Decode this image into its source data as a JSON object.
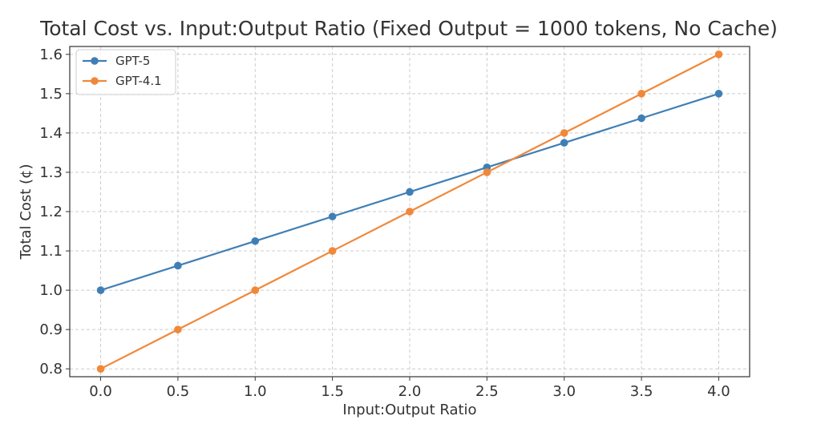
{
  "chart_data": {
    "type": "line",
    "title": "Total Cost vs. Input:Output Ratio (Fixed Output = 1000 tokens, No Cache)",
    "xlabel": "Input:Output Ratio",
    "ylabel": "Total Cost (¢)",
    "x": [
      0.0,
      0.5,
      1.0,
      1.5,
      2.0,
      2.5,
      3.0,
      3.5,
      4.0
    ],
    "xticks": [
      "0.0",
      "0.5",
      "1.0",
      "1.5",
      "2.0",
      "2.5",
      "3.0",
      "3.5",
      "4.0"
    ],
    "yticks": [
      "0.8",
      "0.9",
      "1.0",
      "1.1",
      "1.2",
      "1.3",
      "1.4",
      "1.5",
      "1.6"
    ],
    "xlim": [
      -0.2,
      4.2
    ],
    "ylim": [
      0.78,
      1.62
    ],
    "grid": true,
    "legend_position": "top-left",
    "series": [
      {
        "name": "GPT-5",
        "color": "#3f7fb5",
        "values": [
          1.0,
          1.0625,
          1.125,
          1.1875,
          1.25,
          1.3125,
          1.375,
          1.4375,
          1.5
        ]
      },
      {
        "name": "GPT-4.1",
        "color": "#f0883a",
        "values": [
          0.8,
          0.9,
          1.0,
          1.1,
          1.2,
          1.3,
          1.4,
          1.5,
          1.6
        ]
      }
    ]
  }
}
